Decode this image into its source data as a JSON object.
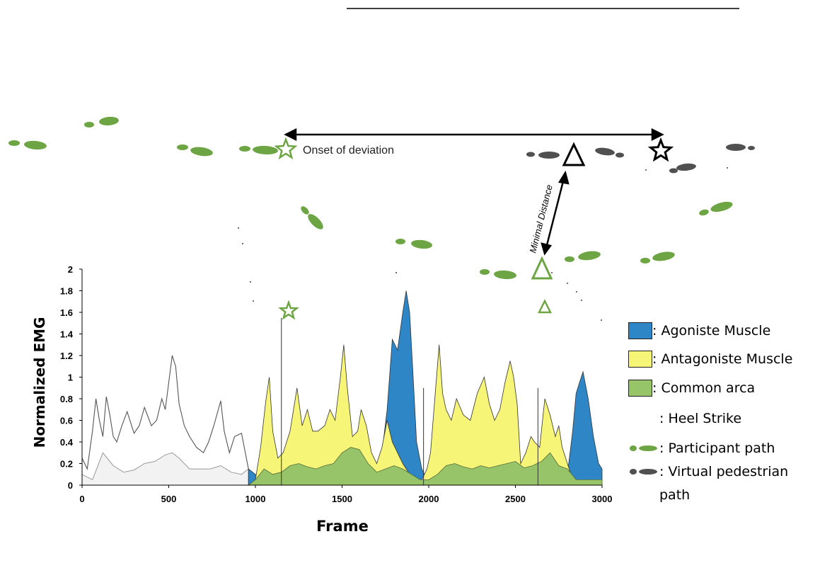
{
  "annotations": {
    "onset_label": "Onset of deviation",
    "minimal_distance_label": "Minimal Distance"
  },
  "legend": {
    "agonist": {
      "label": ": Agoniste Muscle",
      "color": "#2f86c6"
    },
    "antagonist": {
      "label": ": Antagoniste Muscle",
      "color": "#f6f577"
    },
    "common": {
      "label": ": Common arca",
      "color": "#97c468"
    },
    "heel": {
      "label": ": Heel Strike"
    },
    "participant": {
      "label": ": Participant path",
      "color": "#6ea544"
    },
    "virtual": {
      "label_line1": ": Virtual pedestrian",
      "label_line2": "path",
      "color": "#505050"
    }
  },
  "chart_data": {
    "type": "area",
    "xlabel": "Frame",
    "ylabel": "Normalized EMG",
    "xlim": [
      0,
      3000
    ],
    "ylim": [
      0,
      2
    ],
    "x_ticks": [
      0,
      500,
      1000,
      1500,
      2000,
      2500,
      3000
    ],
    "x_tick_labels": [
      "0",
      "500",
      "1000",
      "1500",
      "2000",
      "2500",
      "3000"
    ],
    "y_ticks": [
      0,
      0.2,
      0.4,
      0.6,
      0.8,
      1,
      1.2,
      1.4,
      1.6,
      1.8,
      2
    ],
    "y_tick_labels": [
      "0",
      "0.2",
      "0.4",
      "0.6",
      "0.8",
      "1",
      "1.2",
      "1.4",
      "1.6",
      "1.8",
      "2"
    ],
    "grid": false,
    "colored_region_start": 1000,
    "series": [
      {
        "name": "Agoniste Muscle",
        "x": [
          0,
          30,
          60,
          80,
          100,
          120,
          140,
          160,
          180,
          200,
          230,
          260,
          300,
          330,
          360,
          400,
          430,
          460,
          480,
          500,
          520,
          540,
          560,
          590,
          620,
          660,
          700,
          730,
          760,
          800,
          820,
          850,
          880,
          920,
          960,
          1000,
          1030,
          1060,
          1080,
          1100,
          1130,
          1160,
          1200,
          1240,
          1270,
          1300,
          1330,
          1360,
          1400,
          1430,
          1460,
          1490,
          1510,
          1530,
          1560,
          1590,
          1610,
          1640,
          1670,
          1700,
          1730,
          1760,
          1790,
          1820,
          1850,
          1870,
          1890,
          1910,
          1930,
          1960,
          1990,
          2010,
          2040,
          2060,
          2080,
          2100,
          2130,
          2160,
          2200,
          2240,
          2280,
          2320,
          2350,
          2380,
          2410,
          2440,
          2470,
          2490,
          2510,
          2530,
          2560,
          2590,
          2610,
          2640,
          2670,
          2700,
          2730,
          2750,
          2770,
          2800,
          2830,
          2850,
          2870,
          2890,
          2920,
          2950,
          2980,
          3000
        ],
        "values": [
          0.25,
          0.15,
          0.5,
          0.8,
          0.6,
          0.45,
          0.82,
          0.65,
          0.45,
          0.4,
          0.55,
          0.68,
          0.48,
          0.55,
          0.72,
          0.55,
          0.6,
          0.8,
          0.7,
          0.95,
          1.2,
          1.1,
          0.75,
          0.55,
          0.45,
          0.35,
          0.3,
          0.4,
          0.55,
          0.78,
          0.5,
          0.3,
          0.45,
          0.48,
          0.15,
          0.1,
          0.05,
          0.0,
          0.05,
          0.0,
          0.0,
          0.0,
          0.0,
          0.0,
          0.0,
          0.0,
          0.0,
          0.0,
          0.0,
          0.0,
          0.0,
          0.0,
          0.0,
          0.0,
          0.0,
          0.0,
          0.1,
          0.15,
          0.1,
          0.12,
          0.3,
          0.7,
          1.35,
          1.25,
          1.6,
          1.8,
          1.6,
          1.0,
          0.4,
          0.15,
          0.05,
          0.05,
          0.05,
          0.05,
          0.05,
          0.05,
          0.05,
          0.05,
          0.05,
          0.05,
          0.05,
          0.05,
          0.05,
          0.05,
          0.05,
          0.05,
          0.05,
          0.05,
          0.05,
          0.05,
          0.05,
          0.05,
          0.05,
          0.05,
          0.05,
          0.05,
          0.05,
          0.05,
          0.05,
          0.1,
          0.5,
          0.85,
          0.95,
          1.05,
          0.8,
          0.45,
          0.2,
          0.15
        ]
      },
      {
        "name": "Antagoniste Muscle",
        "x": [
          960,
          1000,
          1030,
          1060,
          1080,
          1100,
          1130,
          1160,
          1200,
          1240,
          1270,
          1300,
          1330,
          1360,
          1400,
          1430,
          1460,
          1490,
          1510,
          1530,
          1560,
          1590,
          1610,
          1640,
          1670,
          1700,
          1730,
          1760,
          1790,
          1820,
          1850,
          1870,
          1890,
          1910,
          1930,
          1960,
          1990,
          2010,
          2040,
          2060,
          2080,
          2100,
          2130,
          2160,
          2200,
          2240,
          2280,
          2320,
          2350,
          2380,
          2410,
          2440,
          2470,
          2490,
          2510,
          2530,
          2560,
          2590,
          2610,
          2640,
          2670,
          2700,
          2730,
          2750,
          2770,
          2800,
          2830,
          2850,
          2870,
          2890,
          2920,
          2950,
          2980,
          3000
        ],
        "values": [
          0.0,
          0.05,
          0.35,
          0.78,
          1.0,
          0.5,
          0.25,
          0.3,
          0.5,
          0.9,
          0.55,
          0.7,
          0.5,
          0.5,
          0.55,
          0.7,
          0.6,
          1.0,
          1.3,
          0.9,
          0.45,
          0.5,
          0.7,
          0.55,
          0.3,
          0.2,
          0.35,
          0.6,
          0.4,
          0.3,
          0.2,
          0.15,
          0.1,
          0.05,
          0.05,
          0.05,
          0.15,
          0.3,
          0.9,
          1.3,
          0.85,
          0.7,
          0.6,
          0.8,
          0.65,
          0.6,
          0.85,
          1.0,
          0.75,
          0.6,
          0.7,
          0.95,
          1.15,
          1.0,
          0.75,
          0.2,
          0.3,
          0.45,
          0.4,
          0.35,
          0.8,
          0.65,
          0.45,
          0.55,
          0.35,
          0.2,
          0.05,
          0.05,
          0.05,
          0.05,
          0.05,
          0.05,
          0.05,
          0.05
        ]
      },
      {
        "name": "Common arca",
        "x": [
          960,
          1000,
          1050,
          1100,
          1150,
          1200,
          1250,
          1300,
          1350,
          1400,
          1450,
          1500,
          1550,
          1600,
          1650,
          1700,
          1750,
          1800,
          1850,
          1900,
          1950,
          2000,
          2050,
          2100,
          2150,
          2200,
          2250,
          2300,
          2350,
          2400,
          2450,
          2500,
          2550,
          2600,
          2650,
          2700,
          2750,
          2800,
          2850,
          2900,
          2950,
          3000
        ],
        "values": [
          0.0,
          0.05,
          0.15,
          0.1,
          0.12,
          0.18,
          0.2,
          0.17,
          0.15,
          0.18,
          0.2,
          0.3,
          0.35,
          0.33,
          0.2,
          0.12,
          0.15,
          0.18,
          0.15,
          0.1,
          0.05,
          0.05,
          0.1,
          0.18,
          0.2,
          0.17,
          0.15,
          0.18,
          0.16,
          0.18,
          0.2,
          0.22,
          0.16,
          0.18,
          0.22,
          0.3,
          0.18,
          0.15,
          0.05,
          0.05,
          0.05,
          0.05
        ]
      },
      {
        "x": [
          0,
          60,
          120,
          180,
          240,
          300,
          360,
          420,
          480,
          520,
          560,
          620,
          680,
          740,
          800,
          860,
          920,
          960
        ],
        "values": [
          0.1,
          0.05,
          0.3,
          0.18,
          0.12,
          0.14,
          0.2,
          0.22,
          0.28,
          0.3,
          0.25,
          0.15,
          0.15,
          0.15,
          0.18,
          0.12,
          0.1,
          0.15
        ]
      }
    ],
    "heel_strikes": [
      1150,
      1970,
      2630
    ]
  }
}
